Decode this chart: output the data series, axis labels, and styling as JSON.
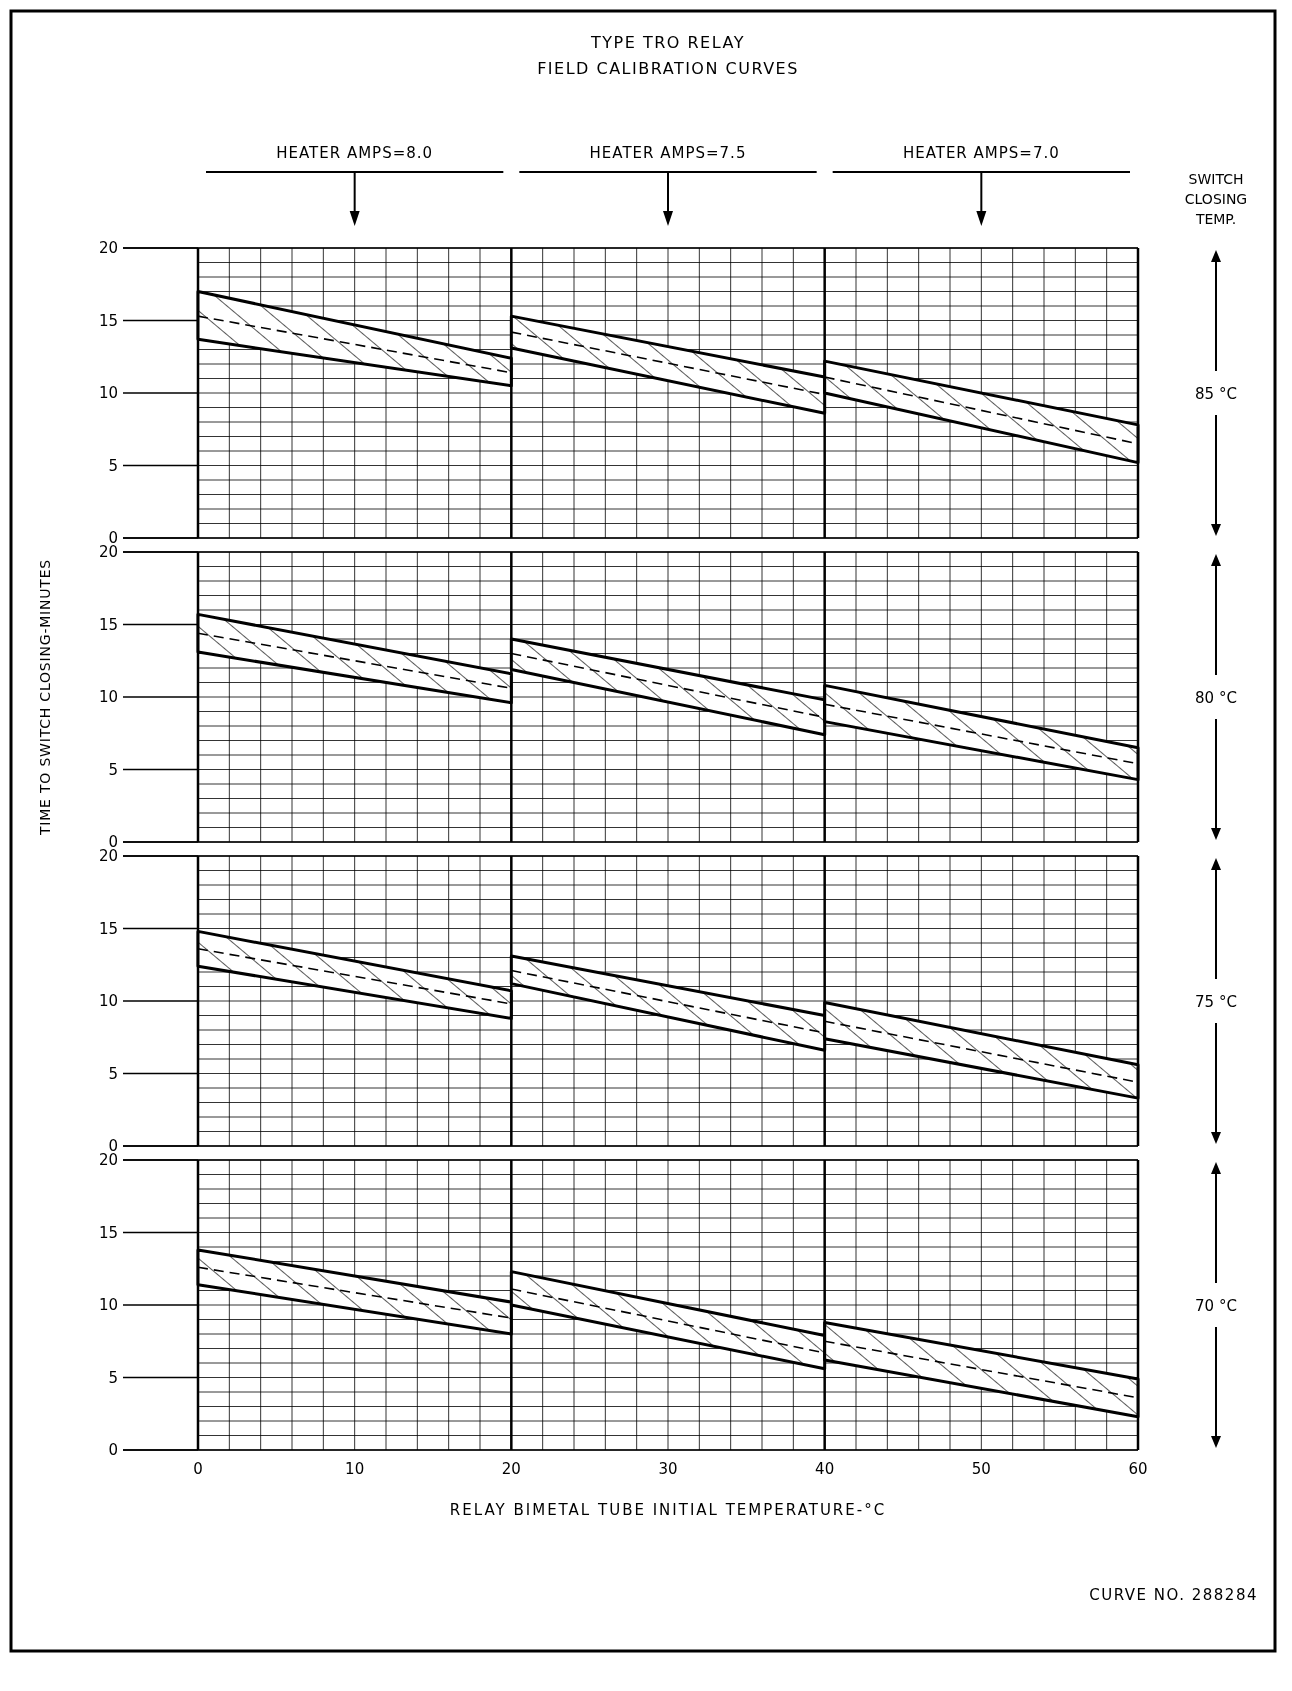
{
  "chart_data": [
    {
      "type": "line",
      "title": "TYPE TRO RELAY",
      "subtitle": "FIELD CALIBRATION CURVES",
      "y2label": "85 °C",
      "annotations": [
        "HEATER AMPS=8.0",
        "HEATER AMPS=7.5",
        "HEATER AMPS=7.0",
        "SWITCH CLOSING TEMP."
      ],
      "xlim": [
        0,
        60
      ],
      "ylim": [
        0,
        20
      ],
      "xticks": [
        {
          "value": 0,
          "label": null
        },
        {
          "value": 2,
          "label": null
        },
        {
          "value": 4,
          "label": null
        },
        {
          "value": 6,
          "label": null
        },
        {
          "value": 8,
          "label": null
        },
        {
          "value": 10,
          "label": null
        },
        {
          "value": 12,
          "label": null
        },
        {
          "value": 14,
          "label": null
        },
        {
          "value": 16,
          "label": null
        },
        {
          "value": 18,
          "label": null
        },
        {
          "value": 20,
          "label": null
        },
        {
          "value": 22,
          "label": null
        },
        {
          "value": 24,
          "label": null
        },
        {
          "value": 26,
          "label": null
        },
        {
          "value": 28,
          "label": null
        },
        {
          "value": 30,
          "label": null
        },
        {
          "value": 32,
          "label": null
        },
        {
          "value": 34,
          "label": null
        },
        {
          "value": 36,
          "label": null
        },
        {
          "value": 38,
          "label": null
        },
        {
          "value": 40,
          "label": null
        },
        {
          "value": 42,
          "label": null
        },
        {
          "value": 44,
          "label": null
        },
        {
          "value": 46,
          "label": null
        },
        {
          "value": 48,
          "label": null
        },
        {
          "value": 50,
          "label": null
        },
        {
          "value": 52,
          "label": null
        },
        {
          "value": 54,
          "label": null
        },
        {
          "value": 56,
          "label": null
        },
        {
          "value": 58,
          "label": null
        },
        {
          "value": 60,
          "label": null
        }
      ],
      "yticks": [
        0,
        {
          "value": 1,
          "label": null
        },
        {
          "value": 2,
          "label": null
        },
        {
          "value": 3,
          "label": null
        },
        {
          "value": 4,
          "label": null
        },
        5,
        {
          "value": 6,
          "label": null
        },
        {
          "value": 7,
          "label": null
        },
        {
          "value": 8,
          "label": null
        },
        {
          "value": 9,
          "label": null
        },
        10,
        {
          "value": 11,
          "label": null
        },
        {
          "value": 12,
          "label": null
        },
        {
          "value": 13,
          "label": null
        },
        {
          "value": 14,
          "label": null
        },
        15,
        {
          "value": 16,
          "label": null
        },
        {
          "value": 17,
          "label": null
        },
        {
          "value": 18,
          "label": null
        },
        {
          "value": 19,
          "label": null
        },
        20
      ],
      "grid": true,
      "tick_labels": "y",
      "line_style": "dashed",
      "series": [
        {
          "x": [
            0,
            20
          ],
          "values": [
            15.3,
            11.4
          ],
          "lower": [
            13.7,
            10.5
          ],
          "upper": [
            17.0,
            12.4
          ],
          "color": "#000000"
        },
        {
          "x": [
            20,
            40
          ],
          "values": [
            14.2,
            9.9
          ],
          "lower": [
            13.1,
            8.6
          ],
          "upper": [
            15.3,
            11.1
          ],
          "color": "#000000"
        },
        {
          "x": [
            40,
            60
          ],
          "values": [
            11.1,
            6.5
          ],
          "lower": [
            10.0,
            5.2
          ],
          "upper": [
            12.2,
            7.8
          ],
          "color": "#000000"
        }
      ]
    },
    {
      "type": "line",
      "ylabel": "TIME TO SWITCH CLOSING-MINUTES",
      "y2label": "80 °C",
      "xlim": [
        0,
        60
      ],
      "ylim": [
        0,
        20
      ],
      "xticks": [
        {
          "value": 0,
          "label": null
        },
        {
          "value": 2,
          "label": null
        },
        {
          "value": 4,
          "label": null
        },
        {
          "value": 6,
          "label": null
        },
        {
          "value": 8,
          "label": null
        },
        {
          "value": 10,
          "label": null
        },
        {
          "value": 12,
          "label": null
        },
        {
          "value": 14,
          "label": null
        },
        {
          "value": 16,
          "label": null
        },
        {
          "value": 18,
          "label": null
        },
        {
          "value": 20,
          "label": null
        },
        {
          "value": 22,
          "label": null
        },
        {
          "value": 24,
          "label": null
        },
        {
          "value": 26,
          "label": null
        },
        {
          "value": 28,
          "label": null
        },
        {
          "value": 30,
          "label": null
        },
        {
          "value": 32,
          "label": null
        },
        {
          "value": 34,
          "label": null
        },
        {
          "value": 36,
          "label": null
        },
        {
          "value": 38,
          "label": null
        },
        {
          "value": 40,
          "label": null
        },
        {
          "value": 42,
          "label": null
        },
        {
          "value": 44,
          "label": null
        },
        {
          "value": 46,
          "label": null
        },
        {
          "value": 48,
          "label": null
        },
        {
          "value": 50,
          "label": null
        },
        {
          "value": 52,
          "label": null
        },
        {
          "value": 54,
          "label": null
        },
        {
          "value": 56,
          "label": null
        },
        {
          "value": 58,
          "label": null
        },
        {
          "value": 60,
          "label": null
        }
      ],
      "yticks": [
        0,
        {
          "value": 1,
          "label": null
        },
        {
          "value": 2,
          "label": null
        },
        {
          "value": 3,
          "label": null
        },
        {
          "value": 4,
          "label": null
        },
        5,
        {
          "value": 6,
          "label": null
        },
        {
          "value": 7,
          "label": null
        },
        {
          "value": 8,
          "label": null
        },
        {
          "value": 9,
          "label": null
        },
        10,
        {
          "value": 11,
          "label": null
        },
        {
          "value": 12,
          "label": null
        },
        {
          "value": 13,
          "label": null
        },
        {
          "value": 14,
          "label": null
        },
        15,
        {
          "value": 16,
          "label": null
        },
        {
          "value": 17,
          "label": null
        },
        {
          "value": 18,
          "label": null
        },
        {
          "value": 19,
          "label": null
        },
        20
      ],
      "grid": true,
      "tick_labels": "y",
      "line_style": "dashed",
      "series": [
        {
          "x": [
            0,
            20
          ],
          "values": [
            14.4,
            10.6
          ],
          "lower": [
            13.1,
            9.6
          ],
          "upper": [
            15.7,
            11.6
          ],
          "color": "#000000"
        },
        {
          "x": [
            20,
            40
          ],
          "values": [
            13.0,
            8.6
          ],
          "lower": [
            11.9,
            7.4
          ],
          "upper": [
            14.0,
            9.8
          ],
          "color": "#000000"
        },
        {
          "x": [
            40,
            60
          ],
          "values": [
            9.5,
            5.4
          ],
          "lower": [
            8.3,
            4.3
          ],
          "upper": [
            10.8,
            6.5
          ],
          "color": "#000000"
        }
      ]
    },
    {
      "type": "line",
      "y2label": "75 °C",
      "xlim": [
        0,
        60
      ],
      "ylim": [
        0,
        20
      ],
      "xticks": [
        {
          "value": 0,
          "label": null
        },
        {
          "value": 2,
          "label": null
        },
        {
          "value": 4,
          "label": null
        },
        {
          "value": 6,
          "label": null
        },
        {
          "value": 8,
          "label": null
        },
        {
          "value": 10,
          "label": null
        },
        {
          "value": 12,
          "label": null
        },
        {
          "value": 14,
          "label": null
        },
        {
          "value": 16,
          "label": null
        },
        {
          "value": 18,
          "label": null
        },
        {
          "value": 20,
          "label": null
        },
        {
          "value": 22,
          "label": null
        },
        {
          "value": 24,
          "label": null
        },
        {
          "value": 26,
          "label": null
        },
        {
          "value": 28,
          "label": null
        },
        {
          "value": 30,
          "label": null
        },
        {
          "value": 32,
          "label": null
        },
        {
          "value": 34,
          "label": null
        },
        {
          "value": 36,
          "label": null
        },
        {
          "value": 38,
          "label": null
        },
        {
          "value": 40,
          "label": null
        },
        {
          "value": 42,
          "label": null
        },
        {
          "value": 44,
          "label": null
        },
        {
          "value": 46,
          "label": null
        },
        {
          "value": 48,
          "label": null
        },
        {
          "value": 50,
          "label": null
        },
        {
          "value": 52,
          "label": null
        },
        {
          "value": 54,
          "label": null
        },
        {
          "value": 56,
          "label": null
        },
        {
          "value": 58,
          "label": null
        },
        {
          "value": 60,
          "label": null
        }
      ],
      "yticks": [
        0,
        {
          "value": 1,
          "label": null
        },
        {
          "value": 2,
          "label": null
        },
        {
          "value": 3,
          "label": null
        },
        {
          "value": 4,
          "label": null
        },
        5,
        {
          "value": 6,
          "label": null
        },
        {
          "value": 7,
          "label": null
        },
        {
          "value": 8,
          "label": null
        },
        {
          "value": 9,
          "label": null
        },
        10,
        {
          "value": 11,
          "label": null
        },
        {
          "value": 12,
          "label": null
        },
        {
          "value": 13,
          "label": null
        },
        {
          "value": 14,
          "label": null
        },
        15,
        {
          "value": 16,
          "label": null
        },
        {
          "value": 17,
          "label": null
        },
        {
          "value": 18,
          "label": null
        },
        {
          "value": 19,
          "label": null
        },
        20
      ],
      "grid": true,
      "tick_labels": "y",
      "line_style": "dashed",
      "series": [
        {
          "x": [
            0,
            20
          ],
          "values": [
            13.6,
            9.8
          ],
          "lower": [
            12.4,
            8.8
          ],
          "upper": [
            14.8,
            10.7
          ],
          "color": "#000000"
        },
        {
          "x": [
            20,
            40
          ],
          "values": [
            12.1,
            7.8
          ],
          "lower": [
            11.2,
            6.6
          ],
          "upper": [
            13.1,
            9.0
          ],
          "color": "#000000"
        },
        {
          "x": [
            40,
            60
          ],
          "values": [
            8.6,
            4.4
          ],
          "lower": [
            7.4,
            3.3
          ],
          "upper": [
            9.9,
            5.6
          ],
          "color": "#000000"
        }
      ]
    },
    {
      "type": "line",
      "y2label": "70 °C",
      "xlabel": "RELAY BIMETAL TUBE INITIAL TEMPERATURE-°C",
      "annotations": [
        "CURVE NO. 288284"
      ],
      "xlim": [
        0,
        60
      ],
      "ylim": [
        0,
        20
      ],
      "xticks": [
        0,
        {
          "value": 2,
          "label": null
        },
        {
          "value": 4,
          "label": null
        },
        {
          "value": 6,
          "label": null
        },
        {
          "value": 8,
          "label": null
        },
        10,
        {
          "value": 12,
          "label": null
        },
        {
          "value": 14,
          "label": null
        },
        {
          "value": 16,
          "label": null
        },
        {
          "value": 18,
          "label": null
        },
        20,
        {
          "value": 22,
          "label": null
        },
        {
          "value": 24,
          "label": null
        },
        {
          "value": 26,
          "label": null
        },
        {
          "value": 28,
          "label": null
        },
        30,
        {
          "value": 32,
          "label": null
        },
        {
          "value": 34,
          "label": null
        },
        {
          "value": 36,
          "label": null
        },
        {
          "value": 38,
          "label": null
        },
        40,
        {
          "value": 42,
          "label": null
        },
        {
          "value": 44,
          "label": null
        },
        {
          "value": 46,
          "label": null
        },
        {
          "value": 48,
          "label": null
        },
        50,
        {
          "value": 52,
          "label": null
        },
        {
          "value": 54,
          "label": null
        },
        {
          "value": 56,
          "label": null
        },
        {
          "value": 58,
          "label": null
        },
        60
      ],
      "yticks": [
        0,
        {
          "value": 1,
          "label": null
        },
        {
          "value": 2,
          "label": null
        },
        {
          "value": 3,
          "label": null
        },
        {
          "value": 4,
          "label": null
        },
        5,
        {
          "value": 6,
          "label": null
        },
        {
          "value": 7,
          "label": null
        },
        {
          "value": 8,
          "label": null
        },
        {
          "value": 9,
          "label": null
        },
        10,
        {
          "value": 11,
          "label": null
        },
        {
          "value": 12,
          "label": null
        },
        {
          "value": 13,
          "label": null
        },
        {
          "value": 14,
          "label": null
        },
        15,
        {
          "value": 16,
          "label": null
        },
        {
          "value": 17,
          "label": null
        },
        {
          "value": 18,
          "label": null
        },
        {
          "value": 19,
          "label": null
        },
        20
      ],
      "grid": true,
      "line_style": "dashed",
      "series": [
        {
          "x": [
            0,
            20
          ],
          "values": [
            12.6,
            9.1
          ],
          "lower": [
            11.4,
            8.0
          ],
          "upper": [
            13.8,
            10.2
          ],
          "color": "#000000"
        },
        {
          "x": [
            20,
            40
          ],
          "values": [
            11.1,
            6.7
          ],
          "lower": [
            10.0,
            5.6
          ],
          "upper": [
            12.3,
            7.9
          ],
          "color": "#000000"
        },
        {
          "x": [
            40,
            60
          ],
          "values": [
            7.5,
            3.6
          ],
          "lower": [
            6.2,
            2.3
          ],
          "upper": [
            8.8,
            4.9
          ],
          "color": "#000000"
        }
      ]
    }
  ]
}
